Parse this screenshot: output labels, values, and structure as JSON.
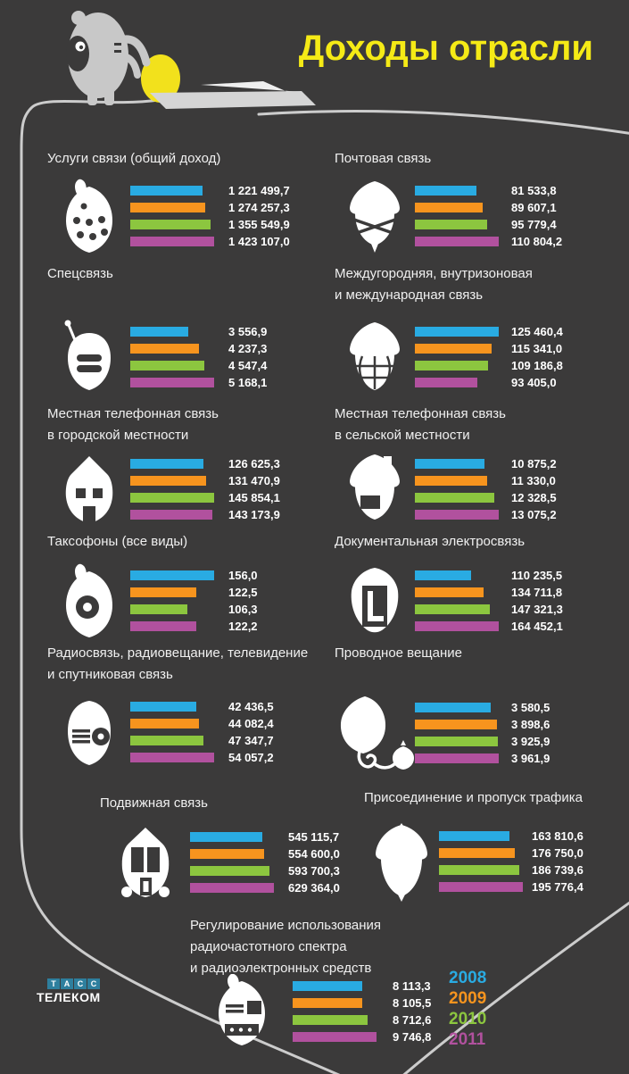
{
  "title": "Доходы отрасли",
  "colors": {
    "bars": [
      "#29abe2",
      "#f7941e",
      "#8cc63f",
      "#b1519e"
    ],
    "title_yellow": "#f5ea16",
    "background": "#3b3a3a",
    "outline_gray": "#cccccc",
    "logo_blue": "#2e7f9e"
  },
  "legend": [
    "2008",
    "2009",
    "2010",
    "2011"
  ],
  "logo": {
    "tass_letters": [
      "Т",
      "А",
      "С",
      "С"
    ],
    "telecom": "Телеком"
  },
  "sections": [
    {
      "icon": "acorn-seeds-icon",
      "title_lines": [
        "Услуги связи (общий доход)"
      ],
      "values": [
        "1 221 499,7",
        "1 274 257,3",
        "1 355 549,9",
        "1 423 107,0"
      ],
      "nums": [
        1221499.7,
        1274257.3,
        1355549.9,
        1423107.0
      ]
    },
    {
      "icon": "acorn-envelope-icon",
      "title_lines": [
        "Почтовая связь"
      ],
      "values": [
        "81 533,8",
        "89 607,1",
        "95 779,4",
        "110 804,2"
      ],
      "nums": [
        81533.8,
        89607.1,
        95779.4,
        110804.2
      ]
    },
    {
      "icon": "acorn-radio-handset-icon",
      "title_lines": [
        "Спецсвязь"
      ],
      "values": [
        "3 556,9",
        "4 237,3",
        "4 547,4",
        "5 168,1"
      ],
      "nums": [
        3556.9,
        4237.3,
        4547.4,
        5168.1
      ]
    },
    {
      "icon": "acorn-globe-icon",
      "title_lines": [
        "Междугородняя, внутризоновая",
        "и международная связь"
      ],
      "values": [
        "125 460,4",
        "115 341,0",
        "109 186,8",
        "93 405,0"
      ],
      "nums": [
        125460.4,
        115341.0,
        109186.8,
        93405.0
      ]
    },
    {
      "icon": "acorn-city-house-icon",
      "title_lines": [
        "Местная телефонная связь",
        "в городской местности"
      ],
      "values": [
        "126 625,3",
        "131 470,9",
        "145 854,1",
        "143 173,9"
      ],
      "nums": [
        126625.3,
        131470.9,
        145854.1,
        143173.9
      ]
    },
    {
      "icon": "acorn-village-house-icon",
      "title_lines": [
        "Местная телефонная связь",
        "в сельской местности"
      ],
      "values": [
        "10 875,2",
        "11 330,0",
        "12 328,5",
        "13 075,2"
      ],
      "nums": [
        10875.2,
        11330.0,
        12328.5,
        13075.2
      ]
    },
    {
      "icon": "acorn-payphone-dial-icon",
      "title_lines": [
        "Таксофоны (все виды)"
      ],
      "values": [
        "156,0",
        "122,5",
        "106,3",
        "122,2"
      ],
      "nums": [
        156.0,
        122.5,
        106.3,
        122.2
      ]
    },
    {
      "icon": "acorn-document-icon",
      "title_lines": [
        "Документальная электросвязь"
      ],
      "values": [
        "110 235,5",
        "134 711,8",
        "147 321,3",
        "164 452,1"
      ],
      "nums": [
        110235.5,
        134711.8,
        147321.3,
        164452.1
      ]
    },
    {
      "icon": "acorn-broadcast-icon",
      "title_lines": [
        "Радиосвязь, радиовещание, телевидение",
        "и спутниковая связь"
      ],
      "values": [
        "42 436,5",
        "44 082,4",
        "47 347,7",
        "54 057,2"
      ],
      "nums": [
        42436.5,
        44082.4,
        47347.7,
        54057.2
      ]
    },
    {
      "icon": "acorn-wired-pipe-icon",
      "title_lines": [
        "Проводное вещание"
      ],
      "values": [
        "3 580,5",
        "3 898,6",
        "3 925,9",
        "3 961,9"
      ],
      "nums": [
        3580.5,
        3898.6,
        3925.9,
        3961.9
      ]
    },
    {
      "icon": "acorn-mobile-phone-icon",
      "title_lines": [
        "Подвижная связь"
      ],
      "values": [
        "545 115,7",
        "554 600,0",
        "593 700,3",
        "629 364,0"
      ],
      "nums": [
        545115.7,
        554600.0,
        593700.3,
        629364.0
      ]
    },
    {
      "icon": "acorn-plain-icon",
      "title_lines": [
        "Присоединение и пропуск трафика"
      ],
      "values": [
        "163 810,6",
        "176 750,0",
        "186 739,6",
        "195 776,4"
      ],
      "nums": [
        163810.6,
        176750.0,
        186739.6,
        195776.4
      ]
    },
    {
      "icon": "acorn-radio-license-icon",
      "title_lines": [
        "Регулирование использования",
        "радиочастотного спектра",
        "и радиоэлектронных средств"
      ],
      "values": [
        "8 113,3",
        "8 105,5",
        "8 712,6",
        "9 746,8"
      ],
      "nums": [
        8113.3,
        8105.5,
        8712.6,
        9746.8
      ]
    }
  ],
  "chart_data": {
    "type": "bar",
    "orientation": "horizontal",
    "title": "Доходы отрасли",
    "categories": [
      "2008",
      "2009",
      "2010",
      "2011"
    ],
    "legend_position": "bottom-right",
    "grid": false,
    "series_colors": [
      "#29abe2",
      "#f7941e",
      "#8cc63f",
      "#b1519e"
    ],
    "groups": [
      {
        "title": "Услуги связи (общий доход)",
        "values": [
          1221499.7,
          1274257.3,
          1355549.9,
          1423107.0
        ]
      },
      {
        "title": "Почтовая связь",
        "values": [
          81533.8,
          89607.1,
          95779.4,
          110804.2
        ]
      },
      {
        "title": "Спецсвязь",
        "values": [
          3556.9,
          4237.3,
          4547.4,
          5168.1
        ]
      },
      {
        "title": "Междугородняя, внутризоновая и международная связь",
        "values": [
          125460.4,
          115341.0,
          109186.8,
          93405.0
        ]
      },
      {
        "title": "Местная телефонная связь в городской местности",
        "values": [
          126625.3,
          131470.9,
          145854.1,
          143173.9
        ]
      },
      {
        "title": "Местная телефонная связь в сельской местности",
        "values": [
          10875.2,
          11330.0,
          12328.5,
          13075.2
        ]
      },
      {
        "title": "Таксофоны (все виды)",
        "values": [
          156.0,
          122.5,
          106.3,
          122.2
        ]
      },
      {
        "title": "Документальная электросвязь",
        "values": [
          110235.5,
          134711.8,
          147321.3,
          164452.1
        ]
      },
      {
        "title": "Радиосвязь, радиовещание, телевидение и спутниковая связь",
        "values": [
          42436.5,
          44082.4,
          47347.7,
          54057.2
        ]
      },
      {
        "title": "Проводное вещание",
        "values": [
          3580.5,
          3898.6,
          3925.9,
          3961.9
        ]
      },
      {
        "title": "Подвижная связь",
        "values": [
          545115.7,
          554600.0,
          593700.3,
          629364.0
        ]
      },
      {
        "title": "Присоединение и пропуск трафика",
        "values": [
          163810.6,
          176750.0,
          186739.6,
          195776.4
        ]
      },
      {
        "title": "Регулирование использования радиочастотного спектра и радиоэлектронных средств",
        "values": [
          8113.3,
          8105.5,
          8712.6,
          9746.8
        ]
      }
    ]
  }
}
